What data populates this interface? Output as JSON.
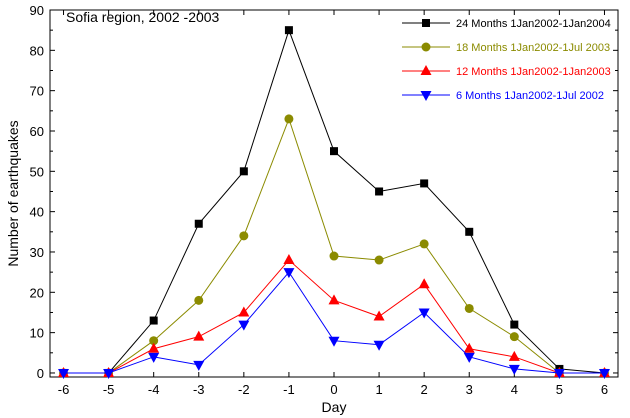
{
  "chart_data": {
    "type": "line",
    "title": "Sofia region, 2002 -2003",
    "xlabel": "Day",
    "ylabel": "Number of earthquakes",
    "x": [
      -6,
      -5,
      -4,
      -3,
      -2,
      -1,
      0,
      1,
      2,
      3,
      4,
      5,
      6
    ],
    "xlim": [
      -6.3,
      6.3
    ],
    "ylim": [
      -1,
      90
    ],
    "yticks": [
      0,
      10,
      20,
      30,
      40,
      50,
      60,
      70,
      80,
      90
    ],
    "grid": false,
    "legend_position": "top-right",
    "series": [
      {
        "name": "24 Months 1Jan2002-1Jan2004",
        "color": "#000000",
        "marker": "square",
        "values": [
          0,
          0,
          13,
          37,
          50,
          85,
          55,
          45,
          47,
          35,
          12,
          1,
          0
        ]
      },
      {
        "name": "18 Months 1Jan2002-1Jul 2003",
        "color": "#8b8b00",
        "marker": "circle",
        "values": [
          0,
          0,
          8,
          18,
          34,
          63,
          29,
          28,
          32,
          16,
          9,
          0,
          0
        ]
      },
      {
        "name": "12 Months 1Jan2002-1Jan2003",
        "color": "#ff0000",
        "marker": "triangle-up",
        "values": [
          0,
          0,
          6,
          9,
          15,
          28,
          18,
          14,
          22,
          6,
          4,
          0,
          0
        ]
      },
      {
        "name": "6 Months 1Jan2002-1Jul 2002",
        "color": "#0000ff",
        "marker": "triangle-down",
        "values": [
          0,
          0,
          4,
          2,
          12,
          25,
          8,
          7,
          15,
          4,
          1,
          0,
          0
        ]
      }
    ]
  }
}
